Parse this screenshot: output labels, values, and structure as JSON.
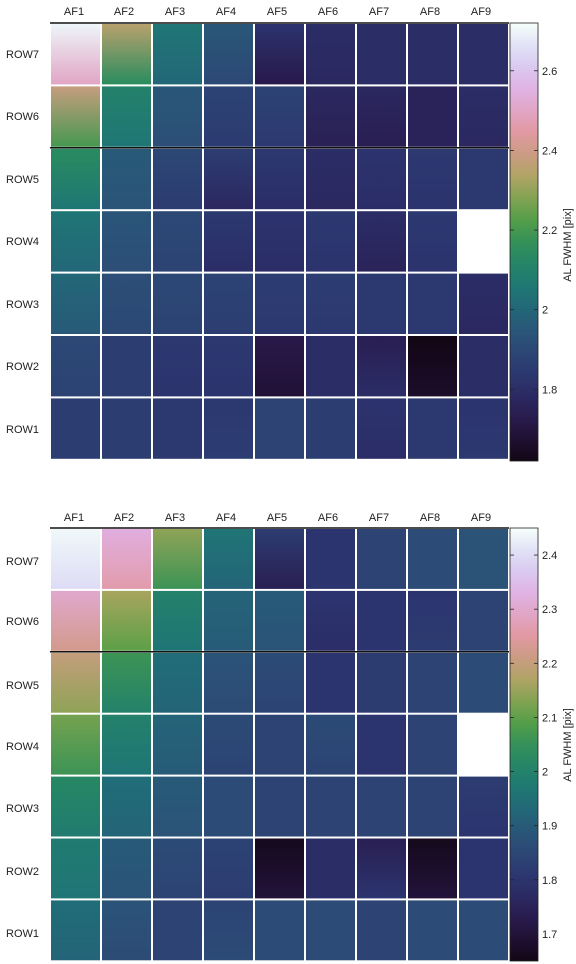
{
  "chart_data": [
    {
      "type": "heatmap",
      "columns": [
        "AF1",
        "AF2",
        "AF3",
        "AF4",
        "AF5",
        "AF6",
        "AF7",
        "AF8",
        "AF9"
      ],
      "rows": [
        "ROW7",
        "ROW6",
        "ROW5",
        "ROW4",
        "ROW3",
        "ROW2",
        "ROW1"
      ],
      "colorbar_label": "AL FWHM [pix]",
      "colorbar_ticks": [
        "1.8",
        "2",
        "2.2",
        "2.4",
        "2.6"
      ],
      "colorbar_tick_values": [
        1.8,
        2.0,
        2.2,
        2.4,
        2.6
      ],
      "colorbar_range": [
        1.62,
        2.72
      ],
      "values": [
        [
          [
            2.7,
            2.5
          ],
          [
            2.35,
            2.15
          ],
          [
            2.05,
            2.0
          ],
          [
            1.95,
            1.9
          ],
          [
            1.82,
            1.72
          ],
          [
            1.8,
            1.78
          ],
          [
            1.8,
            1.8
          ],
          [
            1.8,
            1.8
          ],
          [
            1.8,
            1.8
          ]
        ],
        [
          [
            2.38,
            2.2
          ],
          [
            2.1,
            2.05
          ],
          [
            1.95,
            1.92
          ],
          [
            1.88,
            1.85
          ],
          [
            1.88,
            1.84
          ],
          [
            1.78,
            1.75
          ],
          [
            1.78,
            1.74
          ],
          [
            1.76,
            1.76
          ],
          [
            1.8,
            1.78
          ]
        ],
        [
          [
            2.15,
            2.05
          ],
          [
            1.96,
            1.94
          ],
          [
            1.9,
            1.85
          ],
          [
            1.86,
            1.78
          ],
          [
            1.84,
            1.8
          ],
          [
            1.8,
            1.78
          ],
          [
            1.82,
            1.8
          ],
          [
            1.84,
            1.82
          ],
          [
            1.84,
            1.84
          ]
        ],
        [
          [
            2.05,
            2.0
          ],
          [
            1.94,
            1.92
          ],
          [
            1.9,
            1.88
          ],
          [
            1.84,
            1.8
          ],
          [
            1.82,
            1.8
          ],
          [
            1.84,
            1.82
          ],
          [
            1.8,
            1.76
          ],
          [
            1.84,
            1.82
          ],
          null
        ],
        [
          [
            2.0,
            1.96
          ],
          [
            1.92,
            1.9
          ],
          [
            1.9,
            1.88
          ],
          [
            1.88,
            1.86
          ],
          [
            1.86,
            1.84
          ],
          [
            1.86,
            1.84
          ],
          [
            1.84,
            1.84
          ],
          [
            1.84,
            1.84
          ],
          [
            1.8,
            1.78
          ]
        ],
        [
          [
            1.9,
            1.88
          ],
          [
            1.86,
            1.86
          ],
          [
            1.84,
            1.82
          ],
          [
            1.84,
            1.82
          ],
          [
            1.72,
            1.68
          ],
          [
            1.8,
            1.8
          ],
          [
            1.74,
            1.8
          ],
          [
            1.62,
            1.66
          ],
          [
            1.8,
            1.8
          ]
        ],
        [
          [
            1.86,
            1.86
          ],
          [
            1.86,
            1.86
          ],
          [
            1.84,
            1.84
          ],
          [
            1.84,
            1.86
          ],
          [
            1.88,
            1.88
          ],
          [
            1.86,
            1.86
          ],
          [
            1.82,
            1.8
          ],
          [
            1.84,
            1.84
          ],
          [
            1.82,
            1.84
          ]
        ]
      ]
    },
    {
      "type": "heatmap",
      "columns": [
        "AF1",
        "AF2",
        "AF3",
        "AF4",
        "AF5",
        "AF6",
        "AF7",
        "AF8",
        "AF9"
      ],
      "rows": [
        "ROW7",
        "ROW6",
        "ROW5",
        "ROW4",
        "ROW3",
        "ROW2",
        "ROW1"
      ],
      "colorbar_label": "AL FWHM [pix]",
      "colorbar_ticks": [
        "1.7",
        "1.8",
        "1.9",
        "2",
        "2.1",
        "2.2",
        "2.3",
        "2.4"
      ],
      "colorbar_tick_values": [
        1.7,
        1.8,
        1.9,
        2.0,
        2.1,
        2.2,
        2.3,
        2.4
      ],
      "colorbar_range": [
        1.65,
        2.45
      ],
      "values": [
        [
          [
            2.44,
            2.4
          ],
          [
            2.32,
            2.26
          ],
          [
            2.14,
            2.06
          ],
          [
            1.96,
            1.92
          ],
          [
            1.82,
            1.74
          ],
          [
            1.8,
            1.8
          ],
          [
            1.84,
            1.84
          ],
          [
            1.86,
            1.86
          ],
          [
            1.88,
            1.88
          ]
        ],
        [
          [
            2.3,
            2.22
          ],
          [
            2.16,
            2.1
          ],
          [
            2.0,
            1.96
          ],
          [
            1.92,
            1.9
          ],
          [
            1.9,
            1.88
          ],
          [
            1.8,
            1.78
          ],
          [
            1.8,
            1.8
          ],
          [
            1.8,
            1.82
          ],
          [
            1.84,
            1.84
          ]
        ],
        [
          [
            2.2,
            2.14
          ],
          [
            2.06,
            2.0
          ],
          [
            1.94,
            1.92
          ],
          [
            1.88,
            1.86
          ],
          [
            1.86,
            1.84
          ],
          [
            1.8,
            1.8
          ],
          [
            1.82,
            1.82
          ],
          [
            1.84,
            1.84
          ],
          [
            1.86,
            1.86
          ]
        ],
        [
          [
            2.12,
            2.06
          ],
          [
            2.0,
            1.96
          ],
          [
            1.92,
            1.9
          ],
          [
            1.86,
            1.84
          ],
          [
            1.84,
            1.84
          ],
          [
            1.86,
            1.84
          ],
          [
            1.8,
            1.8
          ],
          [
            1.84,
            1.84
          ],
          null
        ],
        [
          [
            2.02,
            1.98
          ],
          [
            1.94,
            1.92
          ],
          [
            1.9,
            1.88
          ],
          [
            1.86,
            1.86
          ],
          [
            1.84,
            1.84
          ],
          [
            1.84,
            1.84
          ],
          [
            1.84,
            1.84
          ],
          [
            1.84,
            1.84
          ],
          [
            1.82,
            1.8
          ]
        ],
        [
          [
            1.98,
            1.96
          ],
          [
            1.9,
            1.88
          ],
          [
            1.86,
            1.84
          ],
          [
            1.84,
            1.82
          ],
          [
            1.66,
            1.7
          ],
          [
            1.78,
            1.78
          ],
          [
            1.74,
            1.8
          ],
          [
            1.66,
            1.7
          ],
          [
            1.8,
            1.8
          ]
        ],
        [
          [
            1.94,
            1.92
          ],
          [
            1.88,
            1.86
          ],
          [
            1.84,
            1.84
          ],
          [
            1.84,
            1.86
          ],
          [
            1.86,
            1.86
          ],
          [
            1.86,
            1.86
          ],
          [
            1.84,
            1.84
          ],
          [
            1.86,
            1.86
          ],
          [
            1.86,
            1.86
          ]
        ]
      ]
    }
  ]
}
